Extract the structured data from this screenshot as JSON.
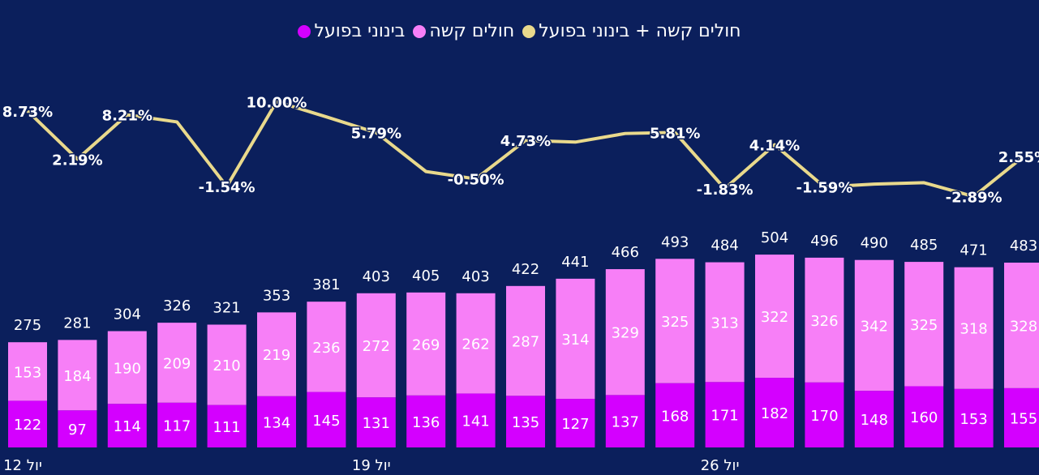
{
  "chart_data": {
    "type": "bar",
    "categories": [
      "12 יול",
      null,
      null,
      null,
      null,
      null,
      null,
      "19 יול",
      null,
      null,
      null,
      null,
      null,
      null,
      "26 יול",
      null,
      null,
      null,
      null,
      null,
      null
    ],
    "series": [
      {
        "name": "בינוני בפועל",
        "color": "#d400ff",
        "values": [
          122,
          97,
          114,
          117,
          111,
          134,
          145,
          131,
          136,
          141,
          135,
          127,
          137,
          168,
          171,
          182,
          170,
          148,
          160,
          153,
          155
        ]
      },
      {
        "name": "חולים קשה",
        "color": "#f77ff7",
        "values": [
          153,
          184,
          190,
          209,
          210,
          219,
          236,
          272,
          269,
          262,
          287,
          314,
          329,
          325,
          313,
          322,
          326,
          342,
          325,
          318,
          328
        ]
      },
      {
        "name": "חולים קשה + בינוני בפועל",
        "color": "#e9d98c",
        "type": "line",
        "axis": "y2",
        "values": [
          8.73,
          2.19,
          8.21,
          7.24,
          -1.54,
          10.0,
          7.93,
          5.79,
          0.5,
          -0.5,
          4.73,
          4.5,
          5.67,
          5.81,
          -1.83,
          4.14,
          -1.59,
          -1.21,
          -1.02,
          -2.89,
          2.55
        ],
        "value_labels": [
          "8.73%",
          "2.19%",
          "8.21%",
          null,
          "-1.54%",
          "10.00%",
          null,
          "5.79%",
          null,
          "-0.50%",
          "4.73%",
          null,
          null,
          "5.81%",
          "-1.83%",
          "4.14%",
          "-1.59%",
          null,
          null,
          "-2.89%",
          "2.55%"
        ]
      }
    ],
    "totals": [
      275,
      281,
      304,
      326,
      321,
      353,
      381,
      403,
      405,
      403,
      422,
      441,
      466,
      493,
      484,
      504,
      496,
      490,
      485,
      471,
      483
    ],
    "ylim": [
      0,
      1000
    ],
    "y2lim": [
      -37,
      15
    ],
    "legend": "top"
  }
}
